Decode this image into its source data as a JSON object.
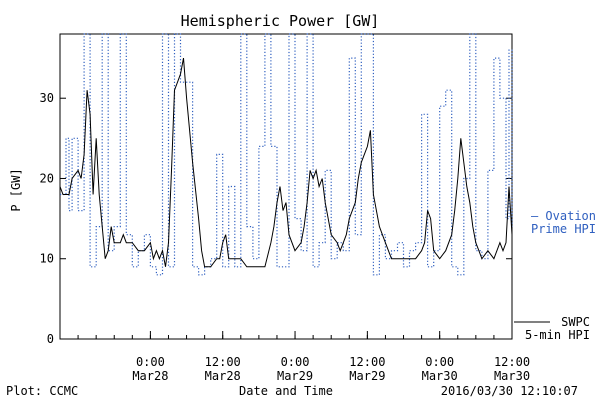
{
  "chart_data": {
    "type": "line",
    "title": "Hemispheric Power [GW]",
    "xlabel": "Date and Time",
    "ylabel": "P [GW]",
    "xlim": [
      "2016-03-27 09:00",
      "2016-03-30 12:00"
    ],
    "ylim": [
      0,
      38
    ],
    "y_ticks": [
      0,
      10,
      20,
      30
    ],
    "x_ticks": [
      {
        "t": "2016-03-28 00:00",
        "time": "0:00",
        "date": "Mar28"
      },
      {
        "t": "2016-03-28 12:00",
        "time": "12:00",
        "date": "Mar28"
      },
      {
        "t": "2016-03-29 00:00",
        "time": "0:00",
        "date": "Mar29"
      },
      {
        "t": "2016-03-29 12:00",
        "time": "12:00",
        "date": "Mar29"
      },
      {
        "t": "2016-03-30 00:00",
        "time": "0:00",
        "date": "Mar30"
      },
      {
        "t": "2016-03-30 12:00",
        "time": "12:00",
        "date": "Mar30"
      }
    ],
    "grid": false,
    "series": [
      {
        "name": "Ovation Prime HPI",
        "color": "#3060c0",
        "style": "dotted-step",
        "points": [
          [
            "2016-03-27 09:00",
            18
          ],
          [
            "2016-03-27 10:00",
            25
          ],
          [
            "2016-03-27 10:30",
            16
          ],
          [
            "2016-03-27 11:00",
            25
          ],
          [
            "2016-03-27 12:00",
            16
          ],
          [
            "2016-03-27 13:00",
            38
          ],
          [
            "2016-03-27 14:00",
            9
          ],
          [
            "2016-03-27 15:00",
            14
          ],
          [
            "2016-03-27 16:00",
            38
          ],
          [
            "2016-03-27 17:00",
            11
          ],
          [
            "2016-03-27 18:00",
            14
          ],
          [
            "2016-03-27 19:00",
            38
          ],
          [
            "2016-03-27 20:00",
            13
          ],
          [
            "2016-03-27 21:00",
            9
          ],
          [
            "2016-03-27 22:00",
            11
          ],
          [
            "2016-03-27 23:00",
            13
          ],
          [
            "2016-03-28 00:00",
            9
          ],
          [
            "2016-03-28 01:00",
            8
          ],
          [
            "2016-03-28 02:00",
            38
          ],
          [
            "2016-03-28 03:00",
            9
          ],
          [
            "2016-03-28 04:00",
            38
          ],
          [
            "2016-03-28 05:00",
            32
          ],
          [
            "2016-03-28 06:00",
            32
          ],
          [
            "2016-03-28 07:00",
            9
          ],
          [
            "2016-03-28 08:00",
            8
          ],
          [
            "2016-03-28 09:00",
            9
          ],
          [
            "2016-03-28 10:00",
            10
          ],
          [
            "2016-03-28 11:00",
            23
          ],
          [
            "2016-03-28 12:00",
            9
          ],
          [
            "2016-03-28 13:00",
            19
          ],
          [
            "2016-03-28 14:00",
            9
          ],
          [
            "2016-03-28 15:00",
            38
          ],
          [
            "2016-03-28 16:00",
            14
          ],
          [
            "2016-03-28 17:00",
            10
          ],
          [
            "2016-03-28 18:00",
            24
          ],
          [
            "2016-03-28 19:00",
            38
          ],
          [
            "2016-03-28 20:00",
            24
          ],
          [
            "2016-03-28 21:00",
            9
          ],
          [
            "2016-03-28 22:00",
            9
          ],
          [
            "2016-03-28 23:00",
            38
          ],
          [
            "2016-03-29 00:00",
            15
          ],
          [
            "2016-03-29 01:00",
            11
          ],
          [
            "2016-03-29 02:00",
            38
          ],
          [
            "2016-03-29 03:00",
            9
          ],
          [
            "2016-03-29 04:00",
            12
          ],
          [
            "2016-03-29 05:00",
            21
          ],
          [
            "2016-03-29 06:00",
            10
          ],
          [
            "2016-03-29 07:00",
            12
          ],
          [
            "2016-03-29 08:00",
            11
          ],
          [
            "2016-03-29 09:00",
            35
          ],
          [
            "2016-03-29 10:00",
            13
          ],
          [
            "2016-03-29 11:00",
            38
          ],
          [
            "2016-03-29 12:00",
            38
          ],
          [
            "2016-03-29 13:00",
            8
          ],
          [
            "2016-03-29 14:00",
            13
          ],
          [
            "2016-03-29 15:00",
            10
          ],
          [
            "2016-03-29 16:00",
            11
          ],
          [
            "2016-03-29 17:00",
            12
          ],
          [
            "2016-03-29 18:00",
            9
          ],
          [
            "2016-03-29 19:00",
            11
          ],
          [
            "2016-03-29 20:00",
            12
          ],
          [
            "2016-03-29 21:00",
            28
          ],
          [
            "2016-03-29 22:00",
            9
          ],
          [
            "2016-03-29 23:00",
            11
          ],
          [
            "2016-03-30 00:00",
            29
          ],
          [
            "2016-03-30 01:00",
            31
          ],
          [
            "2016-03-30 02:00",
            9
          ],
          [
            "2016-03-30 03:00",
            8
          ],
          [
            "2016-03-30 04:00",
            20
          ],
          [
            "2016-03-30 05:00",
            38
          ],
          [
            "2016-03-30 06:00",
            11
          ],
          [
            "2016-03-30 07:00",
            10
          ],
          [
            "2016-03-30 08:00",
            21
          ],
          [
            "2016-03-30 09:00",
            35
          ],
          [
            "2016-03-30 10:00",
            30
          ],
          [
            "2016-03-30 11:00",
            15
          ],
          [
            "2016-03-30 11:30",
            36
          ],
          [
            "2016-03-30 12:00",
            14
          ]
        ]
      },
      {
        "name": "SWPC 5-min HPI",
        "color": "#000000",
        "style": "solid",
        "points": [
          [
            "2016-03-27 09:00",
            19
          ],
          [
            "2016-03-27 09:30",
            18
          ],
          [
            "2016-03-27 10:30",
            18
          ],
          [
            "2016-03-27 11:00",
            20
          ],
          [
            "2016-03-27 12:00",
            21
          ],
          [
            "2016-03-27 12:30",
            20
          ],
          [
            "2016-03-27 13:00",
            23
          ],
          [
            "2016-03-27 13:30",
            31
          ],
          [
            "2016-03-27 14:00",
            28
          ],
          [
            "2016-03-27 14:30",
            18
          ],
          [
            "2016-03-27 15:00",
            25
          ],
          [
            "2016-03-27 15:30",
            18
          ],
          [
            "2016-03-27 16:00",
            14
          ],
          [
            "2016-03-27 16:30",
            10
          ],
          [
            "2016-03-27 17:00",
            11
          ],
          [
            "2016-03-27 17:30",
            14
          ],
          [
            "2016-03-27 18:00",
            12
          ],
          [
            "2016-03-27 19:00",
            12
          ],
          [
            "2016-03-27 19:30",
            13
          ],
          [
            "2016-03-27 20:00",
            12
          ],
          [
            "2016-03-27 21:00",
            12
          ],
          [
            "2016-03-27 22:00",
            11
          ],
          [
            "2016-03-27 23:00",
            11
          ],
          [
            "2016-03-28 00:00",
            12
          ],
          [
            "2016-03-28 00:30",
            10
          ],
          [
            "2016-03-28 01:00",
            11
          ],
          [
            "2016-03-28 01:30",
            10
          ],
          [
            "2016-03-28 02:00",
            11
          ],
          [
            "2016-03-28 02:30",
            9
          ],
          [
            "2016-03-28 03:00",
            12
          ],
          [
            "2016-03-28 03:30",
            21
          ],
          [
            "2016-03-28 04:00",
            31
          ],
          [
            "2016-03-28 04:30",
            32
          ],
          [
            "2016-03-28 05:00",
            33
          ],
          [
            "2016-03-28 05:30",
            35
          ],
          [
            "2016-03-28 06:00",
            30
          ],
          [
            "2016-03-28 07:00",
            22
          ],
          [
            "2016-03-28 08:00",
            15
          ],
          [
            "2016-03-28 08:30",
            11
          ],
          [
            "2016-03-28 09:00",
            9
          ],
          [
            "2016-03-28 10:00",
            9
          ],
          [
            "2016-03-28 11:00",
            10
          ],
          [
            "2016-03-28 11:30",
            10
          ],
          [
            "2016-03-28 12:00",
            12
          ],
          [
            "2016-03-28 12:30",
            13
          ],
          [
            "2016-03-28 13:00",
            10
          ],
          [
            "2016-03-28 14:00",
            10
          ],
          [
            "2016-03-28 15:00",
            10
          ],
          [
            "2016-03-28 16:00",
            9
          ],
          [
            "2016-03-28 17:00",
            9
          ],
          [
            "2016-03-28 18:00",
            9
          ],
          [
            "2016-03-28 19:00",
            9
          ],
          [
            "2016-03-28 20:00",
            12
          ],
          [
            "2016-03-28 20:30",
            14
          ],
          [
            "2016-03-28 21:00",
            17
          ],
          [
            "2016-03-28 21:30",
            19
          ],
          [
            "2016-03-28 22:00",
            16
          ],
          [
            "2016-03-28 22:30",
            17
          ],
          [
            "2016-03-28 23:00",
            13
          ],
          [
            "2016-03-29 00:00",
            11
          ],
          [
            "2016-03-29 01:00",
            12
          ],
          [
            "2016-03-29 01:30",
            14
          ],
          [
            "2016-03-29 02:00",
            17
          ],
          [
            "2016-03-29 02:30",
            21
          ],
          [
            "2016-03-29 03:00",
            20
          ],
          [
            "2016-03-29 03:30",
            21
          ],
          [
            "2016-03-29 04:00",
            19
          ],
          [
            "2016-03-29 04:30",
            20
          ],
          [
            "2016-03-29 05:00",
            17
          ],
          [
            "2016-03-29 06:00",
            13
          ],
          [
            "2016-03-29 07:00",
            12
          ],
          [
            "2016-03-29 07:30",
            11
          ],
          [
            "2016-03-29 08:00",
            12
          ],
          [
            "2016-03-29 08:30",
            13
          ],
          [
            "2016-03-29 09:00",
            15
          ],
          [
            "2016-03-29 10:00",
            17
          ],
          [
            "2016-03-29 10:30",
            20
          ],
          [
            "2016-03-29 11:00",
            22
          ],
          [
            "2016-03-29 12:00",
            24
          ],
          [
            "2016-03-29 12:30",
            26
          ],
          [
            "2016-03-29 13:00",
            18
          ],
          [
            "2016-03-29 14:00",
            14
          ],
          [
            "2016-03-29 15:00",
            12
          ],
          [
            "2016-03-29 16:00",
            10
          ],
          [
            "2016-03-29 17:00",
            10
          ],
          [
            "2016-03-29 18:00",
            10
          ],
          [
            "2016-03-29 19:00",
            10
          ],
          [
            "2016-03-29 20:00",
            10
          ],
          [
            "2016-03-29 21:00",
            11
          ],
          [
            "2016-03-29 21:30",
            12
          ],
          [
            "2016-03-29 22:00",
            16
          ],
          [
            "2016-03-29 22:30",
            15
          ],
          [
            "2016-03-29 23:00",
            11
          ],
          [
            "2016-03-30 00:00",
            10
          ],
          [
            "2016-03-30 01:00",
            11
          ],
          [
            "2016-03-30 02:00",
            13
          ],
          [
            "2016-03-30 02:30",
            16
          ],
          [
            "2016-03-30 03:00",
            20
          ],
          [
            "2016-03-30 03:30",
            25
          ],
          [
            "2016-03-30 04:00",
            22
          ],
          [
            "2016-03-30 04:30",
            19
          ],
          [
            "2016-03-30 05:00",
            17
          ],
          [
            "2016-03-30 05:30",
            14
          ],
          [
            "2016-03-30 06:00",
            12
          ],
          [
            "2016-03-30 06:30",
            11
          ],
          [
            "2016-03-30 07:00",
            10
          ],
          [
            "2016-03-30 08:00",
            11
          ],
          [
            "2016-03-30 09:00",
            10
          ],
          [
            "2016-03-30 10:00",
            12
          ],
          [
            "2016-03-30 10:30",
            11
          ],
          [
            "2016-03-30 11:00",
            12
          ],
          [
            "2016-03-30 11:30",
            19
          ],
          [
            "2016-03-30 12:00",
            13
          ]
        ]
      }
    ],
    "legend": [
      {
        "lines": [
          "— Ovation",
          "Prime HPI"
        ],
        "color": "#3060c0",
        "placement": "right"
      },
      {
        "lines": [
          "SWPC",
          "5-min HPI"
        ],
        "color": "#000000",
        "placement": "right"
      }
    ]
  },
  "footer": {
    "plot_source": "Plot: CCMC",
    "xlabel": "Date and Time",
    "timestamp": "2016/03/30 12:10:07"
  }
}
